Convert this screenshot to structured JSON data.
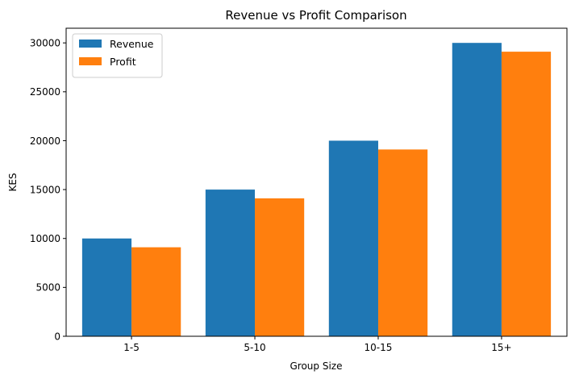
{
  "chart_data": {
    "type": "bar",
    "title": "Revenue vs Profit Comparison",
    "xlabel": "Group Size",
    "ylabel": "KES",
    "categories": [
      "1-5",
      "5-10",
      "10-15",
      "15+"
    ],
    "series": [
      {
        "name": "Revenue",
        "color": "#1f77b4",
        "values": [
          10000,
          15000,
          20000,
          30000
        ]
      },
      {
        "name": "Profit",
        "color": "#ff7f0e",
        "values": [
          9100,
          14100,
          19100,
          29100
        ]
      }
    ],
    "ylim": [
      0,
      31500
    ],
    "yticks": [
      0,
      5000,
      10000,
      15000,
      20000,
      25000,
      30000
    ],
    "legend_position": "top-left",
    "grid": false
  }
}
